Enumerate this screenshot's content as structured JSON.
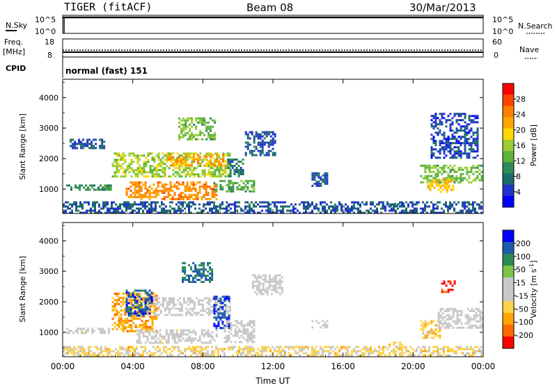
{
  "header": {
    "radar": "TIGER (fitACF)",
    "beam": "Beam 08",
    "date": "30/Mar/2013"
  },
  "status_panel": {
    "nsky_label": "N.Sky",
    "nsearch_label": "N.Search",
    "nsky_ticks_left": [
      "10^5",
      "10^0"
    ],
    "nsky_ticks_right": [
      "10^5",
      "10^0"
    ],
    "freq_label_line1": "Freq.",
    "freq_label_line2": "[MHz]",
    "freq_ticks": [
      "18",
      "8"
    ],
    "nave_label": "Nave",
    "nave_ticks": [
      "60",
      "0"
    ],
    "cpid_label": "CPID",
    "cpid_value": "normal (fast) 151"
  },
  "colors": {
    "power_scale": [
      "#0000ff",
      "#2233cc",
      "#1c6b6b",
      "#2e8b57",
      "#5fb33a",
      "#9acd32",
      "#ffd700",
      "#ffa500",
      "#ff7f00",
      "#ff4500",
      "#ff0000"
    ],
    "velocity_scale": [
      "#0000ff",
      "#1e5aa8",
      "#2e8b57",
      "#7cc44a",
      "#c8c8c8",
      "#c8c8c8",
      "#ffd24a",
      "#ffa500",
      "#ff6a00",
      "#ff0000"
    ]
  },
  "chart_data": [
    {
      "type": "heatmap",
      "name": "power",
      "xlabel": "",
      "ylabel": "Slant Range [km]",
      "xlim": [
        0,
        24
      ],
      "ylim": [
        200,
        4600
      ],
      "yticks": [
        "1000",
        "2000",
        "3000",
        "4000"
      ],
      "colorbar": {
        "label": "Power [dB]",
        "ticks": [
          "4",
          "8",
          "12",
          "16",
          "20",
          "24",
          "28"
        ],
        "range": [
          0,
          32
        ]
      },
      "regions": [
        {
          "t0": 0.0,
          "t1": 24.0,
          "r0": 200,
          "r1": 600,
          "value": 6
        },
        {
          "t0": 0.2,
          "t1": 2.8,
          "r0": 950,
          "r1": 1150,
          "value": 10
        },
        {
          "t0": 0.4,
          "t1": 2.4,
          "r0": 2300,
          "r1": 2650,
          "value": 6
        },
        {
          "t0": 2.8,
          "t1": 9.6,
          "r0": 1400,
          "r1": 2200,
          "value": 16
        },
        {
          "t0": 3.6,
          "t1": 8.8,
          "r0": 650,
          "r1": 1250,
          "value": 24
        },
        {
          "t0": 6.0,
          "t1": 9.4,
          "r0": 1750,
          "r1": 2150,
          "value": 22
        },
        {
          "t0": 6.6,
          "t1": 8.8,
          "r0": 2600,
          "r1": 3350,
          "value": 14
        },
        {
          "t0": 8.6,
          "t1": 11.0,
          "r0": 900,
          "r1": 1300,
          "value": 12
        },
        {
          "t0": 9.4,
          "t1": 10.4,
          "r0": 1400,
          "r1": 2000,
          "value": 8
        },
        {
          "t0": 10.4,
          "t1": 12.2,
          "r0": 2100,
          "r1": 2900,
          "value": 6
        },
        {
          "t0": 14.2,
          "t1": 15.2,
          "r0": 1100,
          "r1": 1550,
          "value": 6
        },
        {
          "t0": 18.2,
          "t1": 19.6,
          "r0": 400,
          "r1": 550,
          "value": 8
        },
        {
          "t0": 20.4,
          "t1": 24.0,
          "r0": 1200,
          "r1": 1800,
          "value": 14
        },
        {
          "t0": 20.8,
          "t1": 22.4,
          "r0": 850,
          "r1": 1350,
          "value": 20
        },
        {
          "t0": 21.0,
          "t1": 23.8,
          "r0": 2000,
          "r1": 3500,
          "value": 5
        }
      ]
    },
    {
      "type": "heatmap",
      "name": "velocity",
      "xlabel": "Time UT",
      "ylabel": "Slant Range [km]",
      "xlim": [
        0,
        24
      ],
      "ylim": [
        200,
        4600
      ],
      "xticks": [
        "00:00",
        "04:00",
        "08:00",
        "12:00",
        "16:00",
        "20:00",
        "00:00"
      ],
      "yticks": [
        "1000",
        "2000",
        "3000",
        "4000"
      ],
      "colorbar": {
        "label": "Velocity [m s-1]",
        "ticks": [
          "200",
          "100",
          "50",
          "15",
          "-15",
          "-50",
          "-100",
          "-200"
        ],
        "range": [
          -250,
          250
        ]
      },
      "regions": [
        {
          "t0": 0.0,
          "t1": 24.0,
          "r0": 200,
          "r1": 550,
          "value": -60
        },
        {
          "t0": 0.2,
          "t1": 2.8,
          "r0": 950,
          "r1": 1150,
          "value": -10
        },
        {
          "t0": 2.8,
          "t1": 5.4,
          "r0": 1000,
          "r1": 2300,
          "value": -120
        },
        {
          "t0": 3.6,
          "t1": 5.2,
          "r0": 1500,
          "r1": 2400,
          "value": 180
        },
        {
          "t0": 5.2,
          "t1": 9.6,
          "r0": 1550,
          "r1": 2150,
          "value": 0
        },
        {
          "t0": 4.2,
          "t1": 8.8,
          "r0": 650,
          "r1": 1100,
          "value": -10
        },
        {
          "t0": 6.8,
          "t1": 8.6,
          "r0": 2600,
          "r1": 3300,
          "value": 150
        },
        {
          "t0": 8.6,
          "t1": 9.6,
          "r0": 1100,
          "r1": 2200,
          "value": 200
        },
        {
          "t0": 9.2,
          "t1": 11.0,
          "r0": 650,
          "r1": 1400,
          "value": -5
        },
        {
          "t0": 10.8,
          "t1": 12.6,
          "r0": 2200,
          "r1": 2900,
          "value": 5
        },
        {
          "t0": 14.2,
          "t1": 15.2,
          "r0": 1100,
          "r1": 1400,
          "value": 0
        },
        {
          "t0": 18.6,
          "t1": 19.4,
          "r0": 550,
          "r1": 700,
          "value": -90
        },
        {
          "t0": 20.4,
          "t1": 21.6,
          "r0": 800,
          "r1": 1400,
          "value": -80
        },
        {
          "t0": 21.4,
          "t1": 24.0,
          "r0": 1100,
          "r1": 1800,
          "value": 0
        },
        {
          "t0": 21.6,
          "t1": 22.4,
          "r0": 2300,
          "r1": 2700,
          "value": -220
        }
      ]
    }
  ]
}
